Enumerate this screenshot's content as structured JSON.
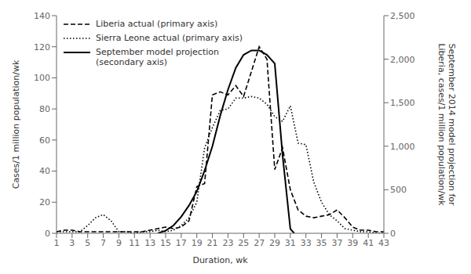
{
  "chart_data": {
    "type": "line",
    "xlabel": "Duration, wk",
    "ylabel": "Cases/1 million population/wk",
    "y2label": "September 2014 model projection for\nLiberia, cases/1 million population/wk",
    "xlim": [
      1,
      43
    ],
    "xticks": [
      1,
      3,
      5,
      7,
      9,
      11,
      13,
      15,
      17,
      19,
      21,
      23,
      25,
      27,
      29,
      31,
      33,
      35,
      37,
      39,
      41,
      43
    ],
    "ylim": [
      0,
      140
    ],
    "yticks": [
      0,
      20,
      40,
      60,
      80,
      100,
      120,
      140
    ],
    "y2lim": [
      0,
      2500
    ],
    "y2ticks": [
      0,
      500,
      {
        "value": 1000,
        "label": "1,000"
      },
      {
        "value": 1500,
        "label": "1,500"
      },
      {
        "value": 2000,
        "label": "2,000"
      },
      {
        "value": 2500,
        "label": "2,500"
      }
    ],
    "grid": false,
    "legend": "upper left",
    "series": [
      {
        "name": "Liberia actual (primary axis)",
        "color": "#000000",
        "line_style": "dashed",
        "axis": "y",
        "x": [
          1,
          2,
          3,
          4,
          5,
          6,
          7,
          8,
          9,
          10,
          11,
          12,
          13,
          14,
          15,
          16,
          17,
          18,
          19,
          20,
          21,
          22,
          23,
          24,
          25,
          26,
          27,
          28,
          29,
          30,
          31,
          32,
          33,
          34,
          35,
          36,
          37,
          38,
          39,
          40,
          41,
          42,
          43
        ],
        "values": [
          1,
          2,
          2,
          1,
          1,
          1,
          1,
          1,
          1,
          1,
          1,
          1,
          2,
          3,
          4,
          3,
          4,
          8,
          30,
          32,
          89,
          91,
          89,
          95,
          88,
          104,
          120,
          112,
          41,
          55,
          28,
          15,
          11,
          10,
          11,
          12,
          15,
          10,
          4,
          2,
          2,
          1,
          1
        ]
      },
      {
        "name": "Sierra Leone actual (primary axis)",
        "color": "#000000",
        "line_style": "dotted",
        "axis": "y",
        "x": [
          1,
          2,
          3,
          4,
          5,
          6,
          7,
          8,
          9,
          10,
          11,
          12,
          13,
          14,
          15,
          16,
          17,
          18,
          19,
          20,
          21,
          22,
          23,
          24,
          25,
          26,
          27,
          28,
          29,
          30,
          31,
          32,
          33,
          34,
          35,
          36,
          37,
          38,
          39,
          40,
          41,
          42,
          43
        ],
        "values": [
          1,
          1,
          1,
          1,
          5,
          10,
          12,
          8,
          1,
          1,
          0,
          1,
          1,
          2,
          1,
          2,
          5,
          10,
          20,
          55,
          68,
          79,
          80,
          87,
          87,
          88,
          87,
          83,
          75,
          72,
          82,
          58,
          57,
          33,
          20,
          12,
          8,
          3,
          2,
          1,
          1,
          0,
          0
        ]
      },
      {
        "name": "September model projection\n(secondary axis)",
        "color": "#000000",
        "line_style": "solid",
        "axis": "y2",
        "x": [
          14,
          15,
          16,
          17,
          18,
          19,
          20,
          21,
          22,
          23,
          24,
          25,
          26,
          27,
          28,
          29,
          30,
          31,
          31.5
        ],
        "values": [
          0,
          30,
          90,
          190,
          320,
          480,
          720,
          1000,
          1350,
          1650,
          1900,
          2050,
          2100,
          2100,
          2050,
          1950,
          900,
          50,
          0
        ]
      }
    ]
  }
}
